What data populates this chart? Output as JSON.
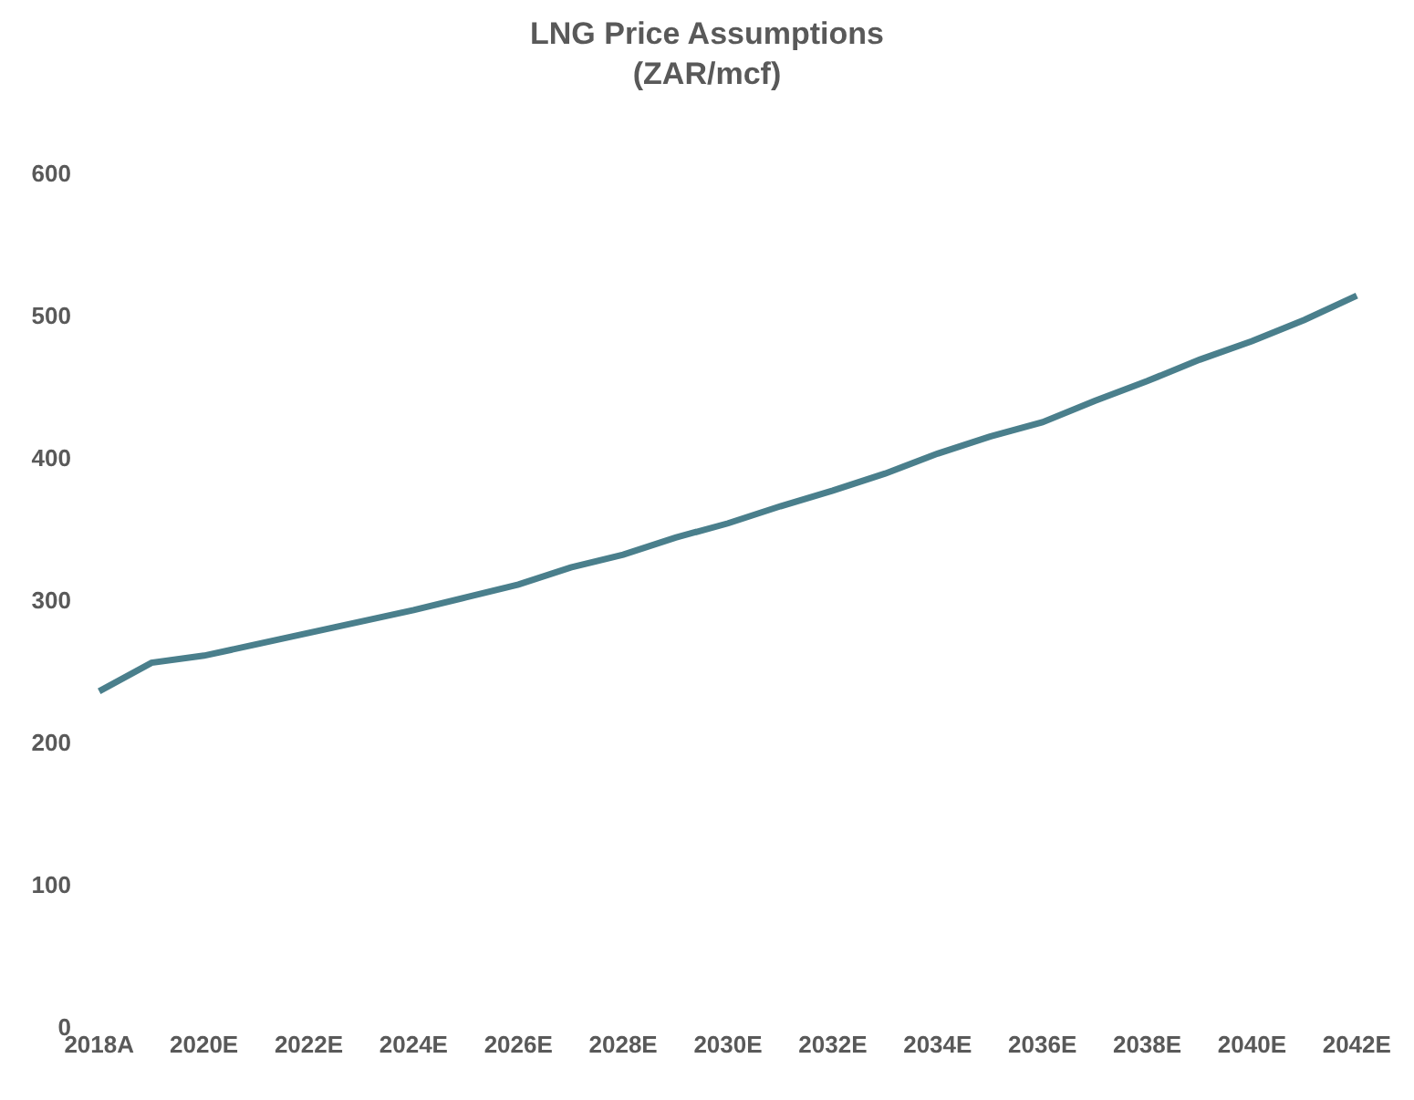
{
  "chart_data": {
    "type": "line",
    "title": "LNG Price Assumptions",
    "subtitle": "(ZAR/mcf)",
    "categories": [
      "2018A",
      null,
      "2020E",
      null,
      "2022E",
      null,
      "2024E",
      null,
      "2026E",
      null,
      "2028E",
      null,
      "2030E",
      null,
      "2032E",
      null,
      "2034E",
      null,
      "2036E",
      null,
      "2038E",
      null,
      "2040E",
      null,
      "2042E"
    ],
    "series": [
      {
        "color": "#4a7f8c",
        "values": [
          236,
          256,
          261,
          269,
          277,
          285,
          293,
          302,
          311,
          323,
          332,
          344,
          354,
          366,
          377,
          389,
          403,
          415,
          425,
          440,
          454,
          469,
          482,
          497,
          514
        ]
      }
    ],
    "ylim": [
      0,
      600
    ],
    "yticks": [
      0,
      100,
      200,
      300,
      400,
      500,
      600
    ],
    "legend": false,
    "marker": "none",
    "line_style": "solid"
  }
}
